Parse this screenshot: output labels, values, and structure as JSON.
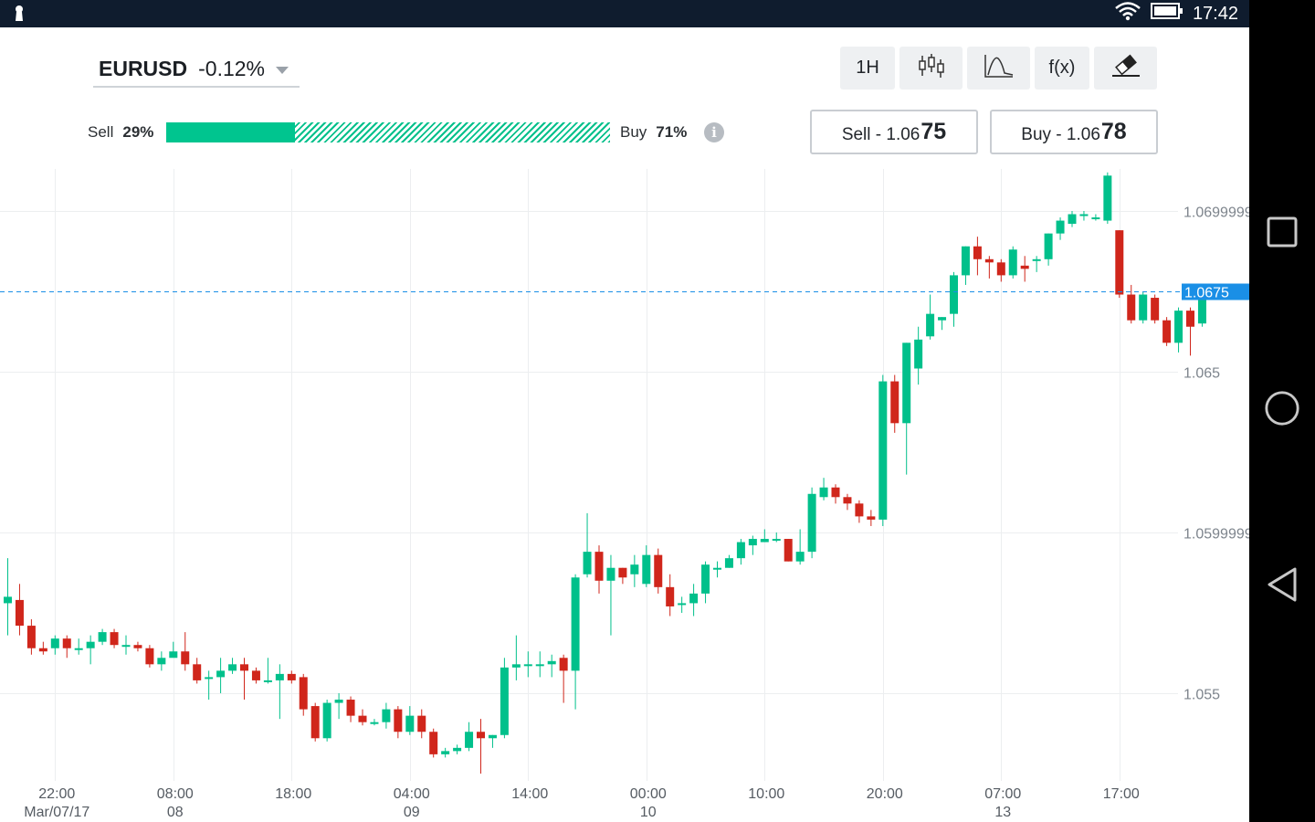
{
  "status_bar": {
    "time": "17:42",
    "icons": [
      "keyhole-icon",
      "wifi-icon",
      "battery-icon"
    ]
  },
  "nav_bar": {
    "icons": [
      "recents-square-icon",
      "home-circle-icon",
      "back-triangle-icon"
    ]
  },
  "instrument": {
    "symbol": "EURUSD",
    "change": "-0.12%"
  },
  "sentiment": {
    "sell_label": "Sell",
    "sell_pct": "29%",
    "buy_label": "Buy",
    "buy_pct": "71%",
    "sell_fraction": 0.29
  },
  "toolbar": {
    "timeframe": "1H",
    "fx_label": "f(x)",
    "icons": [
      "candlestick-icon",
      "indicator-curve-icon",
      "eraser-icon"
    ]
  },
  "trade": {
    "sell_label": "Sell - 1.06",
    "sell_pips": "75",
    "buy_label": "Buy - 1.06",
    "buy_pips": "78"
  },
  "colors": {
    "up": "#00c08b",
    "down": "#d0261b",
    "current_price": "#1a8fe6",
    "grid": "#eceef0"
  },
  "chart_data": {
    "type": "candlestick",
    "y_ticks": [
      "1.0699999",
      "1.065",
      "1.0599999",
      "1.055"
    ],
    "y_tick_values": [
      1.07,
      1.065,
      1.06,
      1.055
    ],
    "y_range": [
      1.0516,
      1.0712
    ],
    "current_price": 1.0675,
    "current_price_label": "1.0675",
    "x_ticks": [
      {
        "time": "22:00",
        "date": "Mar/07/17",
        "index": 4
      },
      {
        "time": "08:00",
        "date": "08",
        "index": 14
      },
      {
        "time": "18:00",
        "date": "",
        "index": 24
      },
      {
        "time": "04:00",
        "date": "09",
        "index": 34
      },
      {
        "time": "14:00",
        "date": "",
        "index": 44
      },
      {
        "time": "00:00",
        "date": "10",
        "index": 54
      },
      {
        "time": "10:00",
        "date": "",
        "index": 64
      },
      {
        "time": "20:00",
        "date": "",
        "index": 74
      },
      {
        "time": "07:00",
        "date": "13",
        "index": 84
      },
      {
        "time": "17:00",
        "date": "",
        "index": 94
      }
    ],
    "candles": [
      [
        1.0578,
        1.058,
        1.0592,
        1.0568
      ],
      [
        1.0579,
        1.0571,
        1.0584,
        1.0568
      ],
      [
        1.0571,
        1.0564,
        1.0573,
        1.0562
      ],
      [
        1.0564,
        1.0563,
        1.0566,
        1.0562
      ],
      [
        1.0564,
        1.0567,
        1.0568,
        1.0562
      ],
      [
        1.0567,
        1.0564,
        1.0568,
        1.0561
      ],
      [
        1.0564,
        1.0564,
        1.0567,
        1.0562
      ],
      [
        1.0564,
        1.0566,
        1.0568,
        1.0559
      ],
      [
        1.0566,
        1.0569,
        1.057,
        1.0565
      ],
      [
        1.0569,
        1.0565,
        1.057,
        1.0564
      ],
      [
        1.0565,
        1.0565,
        1.0568,
        1.0562
      ],
      [
        1.0565,
        1.0564,
        1.0566,
        1.0563
      ],
      [
        1.0564,
        1.0559,
        1.0565,
        1.0558
      ],
      [
        1.0559,
        1.0561,
        1.0563,
        1.0557
      ],
      [
        1.0561,
        1.0563,
        1.0566,
        1.0562
      ],
      [
        1.0563,
        1.0559,
        1.0569,
        1.0557
      ],
      [
        1.0559,
        1.0554,
        1.0561,
        1.0553
      ],
      [
        1.0555,
        1.0555,
        1.0557,
        1.0548
      ],
      [
        1.0555,
        1.0557,
        1.0561,
        1.055
      ],
      [
        1.0557,
        1.0559,
        1.0561,
        1.0556
      ],
      [
        1.0559,
        1.0557,
        1.0561,
        1.0548
      ],
      [
        1.0557,
        1.0554,
        1.0558,
        1.0553
      ],
      [
        1.0554,
        1.0554,
        1.0561,
        1.0553
      ],
      [
        1.0554,
        1.0556,
        1.0559,
        1.0542
      ],
      [
        1.0556,
        1.0554,
        1.0557,
        1.0553
      ],
      [
        1.0555,
        1.0545,
        1.0556,
        1.0543
      ],
      [
        1.0546,
        1.0536,
        1.0547,
        1.0535
      ],
      [
        1.0536,
        1.0547,
        1.0548,
        1.0535
      ],
      [
        1.0547,
        1.0548,
        1.055,
        1.0542
      ],
      [
        1.0548,
        1.0543,
        1.0549,
        1.0541
      ],
      [
        1.0543,
        1.0541,
        1.0545,
        1.054
      ],
      [
        1.0541,
        1.0541,
        1.0542,
        1.054
      ],
      [
        1.0541,
        1.0545,
        1.0547,
        1.0539
      ],
      [
        1.0545,
        1.0538,
        1.0546,
        1.0536
      ],
      [
        1.0538,
        1.0543,
        1.0546,
        1.0537
      ],
      [
        1.0543,
        1.0538,
        1.0545,
        1.0536
      ],
      [
        1.0538,
        1.0531,
        1.0539,
        1.053
      ],
      [
        1.0531,
        1.0532,
        1.0533,
        1.053
      ],
      [
        1.0532,
        1.0533,
        1.0534,
        1.0531
      ],
      [
        1.0533,
        1.0538,
        1.0541,
        1.0532
      ],
      [
        1.0538,
        1.0536,
        1.0542,
        1.0525
      ],
      [
        1.0536,
        1.0537,
        1.0537,
        1.0533
      ],
      [
        1.0537,
        1.0558,
        1.0561,
        1.0536
      ],
      [
        1.0558,
        1.0559,
        1.0568,
        1.0554
      ],
      [
        1.0559,
        1.0559,
        1.0563,
        1.0555
      ],
      [
        1.0559,
        1.0559,
        1.0563,
        1.0555
      ],
      [
        1.0559,
        1.056,
        1.0562,
        1.0555
      ],
      [
        1.0561,
        1.0557,
        1.0562,
        1.0547
      ],
      [
        1.0557,
        1.0586,
        1.0587,
        1.0545
      ],
      [
        1.0587,
        1.0594,
        1.0606,
        1.0586
      ],
      [
        1.0594,
        1.0585,
        1.0596,
        1.0581
      ],
      [
        1.0585,
        1.0589,
        1.0593,
        1.0568
      ],
      [
        1.0589,
        1.0586,
        1.0589,
        1.0584
      ],
      [
        1.0587,
        1.059,
        1.0593,
        1.0583
      ],
      [
        1.0584,
        1.0593,
        1.0596,
        1.0583
      ],
      [
        1.0593,
        1.0583,
        1.0595,
        1.0581
      ],
      [
        1.0583,
        1.0577,
        1.0587,
        1.0574
      ],
      [
        1.0578,
        1.0578,
        1.058,
        1.0575
      ],
      [
        1.0578,
        1.0581,
        1.0584,
        1.0574
      ],
      [
        1.0581,
        1.059,
        1.0591,
        1.0578
      ],
      [
        1.0589,
        1.0589,
        1.0591,
        1.0586
      ],
      [
        1.0589,
        1.0592,
        1.0593,
        1.0589
      ],
      [
        1.0592,
        1.0597,
        1.0598,
        1.059
      ],
      [
        1.0596,
        1.0598,
        1.0599,
        1.0593
      ],
      [
        1.0597,
        1.0598,
        1.0601,
        1.0597
      ],
      [
        1.0598,
        1.0598,
        1.06,
        1.0597
      ],
      [
        1.0598,
        1.0591,
        1.0598,
        1.0591
      ],
      [
        1.0591,
        1.0594,
        1.0601,
        1.059
      ],
      [
        1.0594,
        1.0612,
        1.0614,
        1.0592
      ],
      [
        1.0611,
        1.0614,
        1.0617,
        1.061
      ],
      [
        1.0614,
        1.0611,
        1.0615,
        1.0609
      ],
      [
        1.0611,
        1.0609,
        1.0612,
        1.0607
      ],
      [
        1.0609,
        1.0605,
        1.061,
        1.0603
      ],
      [
        1.0605,
        1.0604,
        1.0607,
        1.0602
      ],
      [
        1.0604,
        1.0647,
        1.0649,
        1.0602
      ],
      [
        1.0647,
        1.0634,
        1.0649,
        1.0631
      ],
      [
        1.0634,
        1.0659,
        1.0659,
        1.0618
      ],
      [
        1.0651,
        1.066,
        1.0664,
        1.0646
      ],
      [
        1.0661,
        1.0668,
        1.0674,
        1.066
      ],
      [
        1.0666,
        1.0667,
        1.0667,
        1.0663
      ],
      [
        1.0668,
        1.068,
        1.0681,
        1.0664
      ],
      [
        1.068,
        1.0689,
        1.0689,
        1.0677
      ],
      [
        1.0689,
        1.0685,
        1.0692,
        1.068
      ],
      [
        1.0685,
        1.0684,
        1.0686,
        1.0679
      ],
      [
        1.0684,
        1.068,
        1.0685,
        1.0678
      ],
      [
        1.068,
        1.0688,
        1.0689,
        1.0679
      ],
      [
        1.0683,
        1.0682,
        1.0686,
        1.0678
      ],
      [
        1.0685,
        1.0685,
        1.0686,
        1.0681
      ],
      [
        1.0685,
        1.0693,
        1.0693,
        1.0683
      ],
      [
        1.0693,
        1.0697,
        1.0698,
        1.0691
      ],
      [
        1.0696,
        1.0699,
        1.07,
        1.0695
      ],
      [
        1.0699,
        1.0699,
        1.07,
        1.0697
      ],
      [
        1.0698,
        1.0698,
        1.0699,
        1.0697
      ],
      [
        1.0697,
        1.0711,
        1.0712,
        1.0696
      ],
      [
        1.0694,
        1.0674,
        1.0694,
        1.0673
      ],
      [
        1.0674,
        1.0666,
        1.0677,
        1.0665
      ],
      [
        1.0666,
        1.0674,
        1.0675,
        1.0665
      ],
      [
        1.0673,
        1.0666,
        1.0674,
        1.0665
      ],
      [
        1.0666,
        1.0659,
        1.0667,
        1.0658
      ],
      [
        1.0659,
        1.0669,
        1.067,
        1.0656
      ],
      [
        1.0669,
        1.0664,
        1.067,
        1.0655
      ],
      [
        1.0665,
        1.0674,
        1.0676,
        1.0664
      ]
    ]
  }
}
